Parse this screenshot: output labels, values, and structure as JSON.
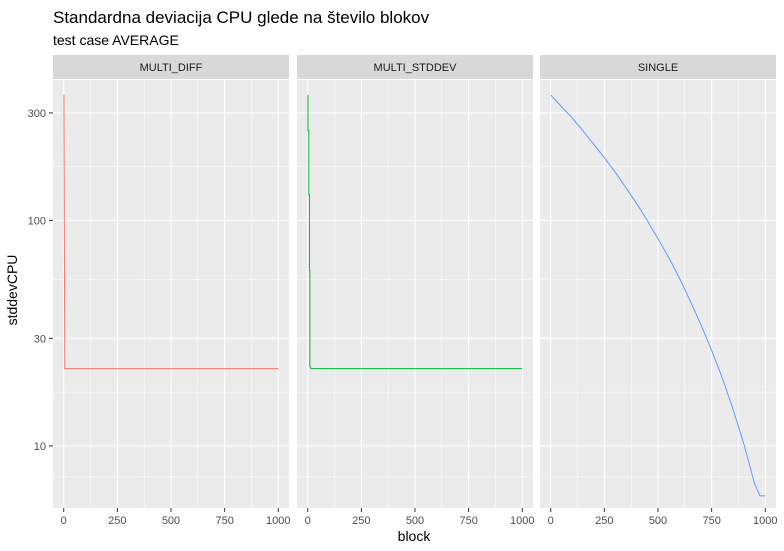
{
  "chart_data": {
    "type": "line",
    "title": "Standardna deviacija CPU glede na število blokov",
    "subtitle": "test case AVERAGE",
    "xlabel": "block",
    "ylabel": "stddevCPU",
    "y_scale": "log10",
    "xlim": [
      -50,
      1050
    ],
    "ylim": [
      5.3,
      420
    ],
    "x_ticks": [
      0,
      250,
      500,
      750,
      1000
    ],
    "x_tick_labels": [
      "0",
      "250",
      "500",
      "750",
      "1000"
    ],
    "y_ticks": [
      10,
      30,
      100,
      300
    ],
    "y_tick_labels": [
      "10",
      "30",
      "100",
      "300"
    ],
    "grid": true,
    "legend": "none",
    "panels": [
      {
        "name": "MULTI_DIFF",
        "color": "#F8766D",
        "x": [
          0,
          1,
          1,
          3,
          3,
          5,
          10,
          50,
          200,
          500,
          800,
          1000
        ],
        "y": [
          360,
          360,
          360,
          80,
          80,
          22,
          22,
          22,
          22,
          22,
          22,
          22
        ]
      },
      {
        "name": "MULTI_STDDEV",
        "color": "#00BA38",
        "x": [
          0,
          1,
          1,
          5,
          5,
          8,
          8,
          10,
          10,
          15,
          50,
          200,
          500,
          800,
          1000
        ],
        "y": [
          360,
          360,
          250,
          250,
          130,
          130,
          60,
          60,
          22.5,
          22,
          22,
          22,
          22,
          22,
          22
        ]
      },
      {
        "name": "SINGLE",
        "color": "#619CFF",
        "x": [
          0,
          50,
          100,
          150,
          200,
          250,
          300,
          350,
          400,
          450,
          500,
          550,
          600,
          650,
          700,
          750,
          800,
          850,
          900,
          950,
          975,
          1000
        ],
        "y": [
          360,
          320,
          285,
          250,
          218,
          190,
          164,
          140,
          119,
          100,
          83,
          68.5,
          55.5,
          44,
          34.5,
          26.5,
          20,
          14.5,
          10.2,
          6.8,
          6.0,
          6.0
        ]
      }
    ]
  }
}
